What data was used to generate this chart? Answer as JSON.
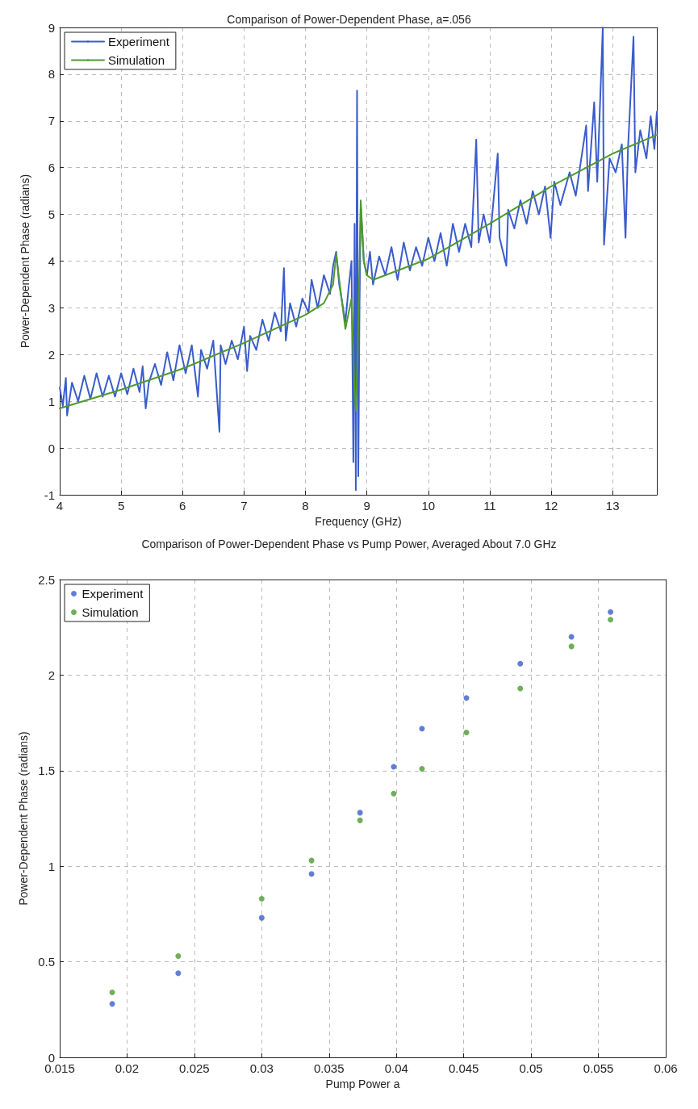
{
  "chart_data": [
    {
      "type": "line",
      "title": "Comparison of Power-Dependent Phase, a=.056",
      "xlabel": "Frequency (GHz)",
      "ylabel": "Power-Dependent Phase (radians)",
      "xlim": [
        4,
        13.72
      ],
      "xticks": [
        4,
        5,
        6,
        7,
        8,
        9,
        10,
        11,
        12,
        13
      ],
      "ylim": [
        -1,
        9
      ],
      "yticks": [
        -1,
        0,
        1,
        2,
        3,
        4,
        5,
        6,
        7,
        8,
        9
      ],
      "grid": true,
      "legend": "top left",
      "marker": "none",
      "line_style": "solid",
      "series": [
        {
          "name": "Experiment",
          "color": "#3a5ccc",
          "x": [
            4.0,
            4.05,
            4.1,
            4.12,
            4.2,
            4.3,
            4.4,
            4.5,
            4.6,
            4.7,
            4.8,
            4.9,
            5.0,
            5.1,
            5.2,
            5.3,
            5.35,
            5.4,
            5.45,
            5.55,
            5.65,
            5.75,
            5.85,
            5.95,
            6.05,
            6.15,
            6.25,
            6.3,
            6.4,
            6.5,
            6.6,
            6.62,
            6.7,
            6.8,
            6.9,
            7.0,
            7.05,
            7.1,
            7.2,
            7.3,
            7.4,
            7.5,
            7.6,
            7.65,
            7.68,
            7.75,
            7.85,
            7.95,
            8.05,
            8.1,
            8.2,
            8.3,
            8.4,
            8.45,
            8.5,
            8.55,
            8.6,
            8.65,
            8.7,
            8.75,
            8.78,
            8.8,
            8.82,
            8.84,
            8.86,
            8.88,
            8.9,
            8.95,
            9.0,
            9.05,
            9.1,
            9.2,
            9.3,
            9.4,
            9.5,
            9.6,
            9.7,
            9.8,
            9.9,
            10.0,
            10.1,
            10.2,
            10.3,
            10.4,
            10.5,
            10.6,
            10.7,
            10.78,
            10.82,
            10.9,
            11.0,
            11.13,
            11.16,
            11.27,
            11.3,
            11.4,
            11.5,
            11.6,
            11.7,
            11.8,
            11.9,
            11.99,
            12.05,
            12.15,
            12.3,
            12.4,
            12.57,
            12.6,
            12.7,
            12.75,
            12.84,
            12.86,
            12.95,
            13.05,
            13.15,
            13.21,
            13.25,
            13.34,
            13.37,
            13.45,
            13.55,
            13.62,
            13.68,
            13.72
          ],
          "values": [
            1.3,
            0.9,
            1.5,
            0.7,
            1.4,
            1.0,
            1.55,
            1.05,
            1.6,
            1.1,
            1.55,
            1.1,
            1.6,
            1.15,
            1.7,
            1.2,
            1.75,
            0.85,
            1.4,
            1.8,
            1.35,
            2.05,
            1.45,
            2.2,
            1.6,
            2.2,
            1.1,
            2.1,
            1.7,
            2.3,
            0.35,
            2.2,
            1.8,
            2.3,
            1.9,
            2.6,
            1.65,
            2.4,
            2.1,
            2.75,
            2.3,
            2.9,
            2.5,
            3.85,
            2.3,
            3.1,
            2.6,
            3.2,
            2.9,
            3.6,
            3.0,
            3.7,
            3.3,
            3.9,
            4.2,
            3.5,
            3.1,
            2.7,
            3.4,
            4.0,
            -0.3,
            4.8,
            -0.9,
            7.65,
            -0.6,
            3.0,
            5.2,
            4.0,
            3.7,
            4.2,
            3.5,
            4.1,
            3.7,
            4.3,
            3.6,
            4.4,
            3.8,
            4.3,
            3.9,
            4.5,
            4.0,
            4.6,
            3.9,
            4.8,
            4.2,
            4.8,
            4.3,
            6.6,
            4.4,
            5.0,
            4.4,
            6.3,
            4.5,
            3.9,
            5.1,
            4.7,
            5.3,
            4.8,
            5.5,
            5.0,
            5.6,
            4.5,
            5.7,
            5.2,
            5.9,
            5.4,
            6.9,
            5.5,
            7.4,
            5.7,
            9.0,
            4.35,
            6.2,
            5.9,
            6.5,
            4.5,
            6.4,
            8.8,
            5.9,
            6.8,
            6.2,
            7.1,
            6.4,
            7.2
          ]
        },
        {
          "name": "Simulation",
          "color": "#4e9a2e",
          "x": [
            4,
            5,
            6,
            7,
            8,
            8.3,
            8.45,
            8.5,
            8.55,
            8.65,
            8.75,
            8.8,
            8.82,
            8.85,
            8.9,
            8.95,
            9.0,
            9.1,
            10,
            11,
            12,
            13,
            13.72
          ],
          "values": [
            0.85,
            1.25,
            1.7,
            2.25,
            2.85,
            3.1,
            3.5,
            4.15,
            3.6,
            2.55,
            3.2,
            1.2,
            0.8,
            2.0,
            5.3,
            4.0,
            3.7,
            3.6,
            4.05,
            4.8,
            5.6,
            6.3,
            6.7
          ]
        }
      ]
    },
    {
      "type": "scatter",
      "title": "Comparison of Power-Dependent Phase vs Pump Power, Averaged About 7.0 GHz",
      "xlabel": "Pump Power a",
      "ylabel": "Power-Dependent Phase (radians)",
      "xlim": [
        0.015,
        0.06
      ],
      "xticks": [
        0.015,
        0.02,
        0.025,
        0.03,
        0.035,
        0.04,
        0.045,
        0.05,
        0.055,
        0.06
      ],
      "ylim": [
        0,
        2.5
      ],
      "yticks": [
        0,
        0.5,
        1,
        1.5,
        2,
        2.5
      ],
      "grid": true,
      "legend": "top left",
      "marker": "circle",
      "x": [
        0.0189,
        0.0238,
        0.03,
        0.0337,
        0.0373,
        0.0398,
        0.0419,
        0.0452,
        0.0492,
        0.053,
        0.0559
      ],
      "series": [
        {
          "name": "Experiment",
          "color": "#3a5ccc",
          "values": [
            0.28,
            0.44,
            0.73,
            0.96,
            1.28,
            1.52,
            1.72,
            1.88,
            2.06,
            2.2,
            2.33
          ]
        },
        {
          "name": "Simulation",
          "color": "#4e9a2e",
          "values": [
            0.34,
            0.53,
            0.83,
            1.03,
            1.24,
            1.38,
            1.51,
            1.7,
            1.93,
            2.15,
            2.29
          ]
        }
      ]
    }
  ]
}
